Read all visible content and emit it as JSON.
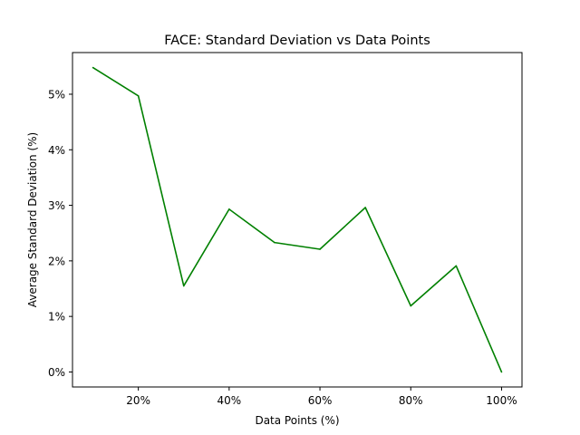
{
  "chart_data": {
    "type": "line",
    "title": "FACE: Standard Deviation vs Data Points",
    "xlabel": "Data Points (%)",
    "ylabel": "Average Standard Deviation (%)",
    "x": [
      10,
      20,
      30,
      40,
      50,
      60,
      70,
      80,
      90,
      100
    ],
    "series": [
      {
        "values": [
          5.48,
          4.97,
          1.55,
          2.93,
          2.33,
          2.21,
          2.96,
          1.19,
          1.91,
          0.0
        ],
        "color": "#008000"
      }
    ],
    "xlim": [
      5.5,
      104.5
    ],
    "ylim": [
      -0.27,
      5.75
    ],
    "xticks": [
      20,
      40,
      60,
      80,
      100
    ],
    "xtick_labels": [
      "20%",
      "40%",
      "60%",
      "80%",
      "100%"
    ],
    "yticks": [
      0,
      1,
      2,
      3,
      4,
      5
    ],
    "ytick_labels": [
      "0%",
      "1%",
      "2%",
      "3%",
      "4%",
      "5%"
    ],
    "grid": false,
    "legend": "none"
  }
}
